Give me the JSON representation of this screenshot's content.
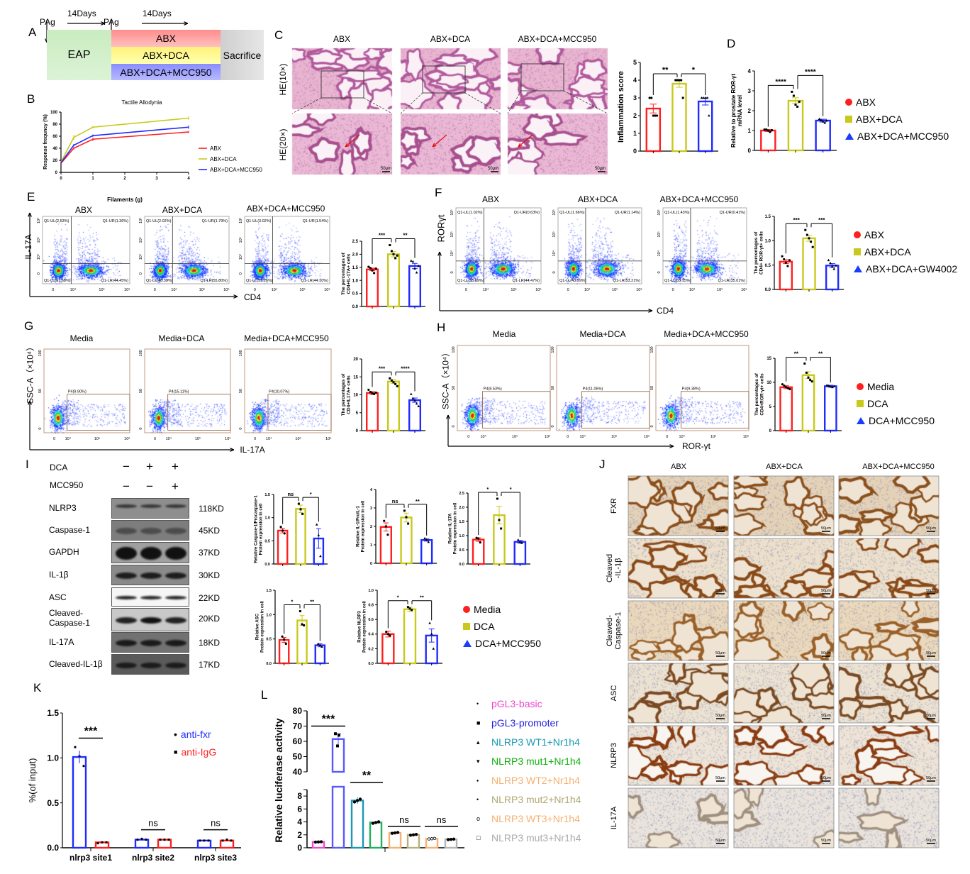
{
  "panel_letters": {
    "a": "A",
    "b": "B",
    "c": "C",
    "d": "D",
    "e": "E",
    "f": "F",
    "g": "G",
    "h": "H",
    "i": "I",
    "j": "J",
    "k": "K",
    "l": "L"
  },
  "colors": {
    "red": "#ff1f1f",
    "yellow": "#c9c91c",
    "blue": "#1f2bff"
  },
  "panel_a": {
    "pag1": "PAg",
    "pag2": "PAg",
    "days1": "14Days",
    "days2": "14Days",
    "eap": "EAP",
    "groups": [
      "ABX",
      "ABX+DCA",
      "ABX+DCA+MCC950"
    ],
    "sacrifice": "Sacrifice"
  },
  "panel_c": {
    "columns": [
      "ABX",
      "ABX+DCA",
      "ABX+DCA+MCC950"
    ],
    "rows": [
      "HE(10×)",
      "HE(20×)"
    ],
    "scale": "50μm"
  },
  "legend_abx": [
    "ABX",
    "ABX+DCA",
    "ABX+DCA+MCC950"
  ],
  "legend_f": [
    "ABX",
    "ABX+DCA",
    "ABX+DCA+GW4002"
  ],
  "legend_media": [
    "Media",
    "DCA",
    "DCA+MCC950"
  ],
  "panel_e": {
    "titles": [
      "ABX",
      "ABX+DCA",
      "ABX+DCA+MCC950"
    ],
    "ylabel": "IL-17A",
    "xlabel": "CD4",
    "xticks": [
      "0",
      "10⁴",
      "10⁵",
      "10⁶"
    ],
    "yticks": [
      "0",
      "10⁴",
      "10⁵",
      "10⁶"
    ],
    "quadrants": [
      [
        "Q1-UL(2.53%)",
        "Q1-UR(1.36%)",
        "Q1-LL(51.68%)",
        "Q1-LR(44.45%)"
      ],
      [
        "Q1-UL(2.02%)",
        "Q1-UR(1.79%)",
        "Q1-LL(40.39%)",
        "Q1-LR(55.80%)"
      ],
      [
        "Q1-UL(3.02%)",
        "Q1-UR(1.54%)",
        "Q1-LL(51.26%)",
        "Q1-LR(44.10%)"
      ]
    ]
  },
  "panel_f": {
    "titles": [
      "ABX",
      "ABX+DCA",
      "ABX+DCA+MCC950"
    ],
    "ylabel": "RORγt",
    "xlabel": "CD4",
    "xticks": [
      "0",
      "10⁴",
      "10⁵",
      "10⁶"
    ],
    "yticks": [
      "0",
      "10⁴",
      "10⁵",
      "10⁶"
    ],
    "quadrants": [
      [
        "Q1-UL(1.02%)",
        "Q1-UR(0.63%)",
        "Q1-LL(53.89%)",
        "Q1-LR(44.47%)"
      ],
      [
        "Q1-UL(1.66%)",
        "Q1-UR(1.14%)",
        "Q1-LL(43.99%)",
        "Q1-LR(53.21%)"
      ],
      [
        "Q1-UL(1.43%)",
        "Q1-UR(0.41%)",
        "Q1-LL(63.15%)",
        "Q1-LR(35.01%)"
      ]
    ]
  },
  "panel_g": {
    "titles": [
      "Media",
      "Media+DCA",
      "Media+DCA+MCC950"
    ],
    "ylabel": "SSC-A（×10⁴）",
    "xlabel": "IL-17A",
    "xticks": [
      "0",
      "10⁴",
      "10⁵",
      "10⁶"
    ],
    "yticks": [
      "0",
      "50",
      "100"
    ],
    "gates": [
      "P4(9.90%)",
      "P4(15.11%)",
      "P4(10.07%)"
    ]
  },
  "panel_h": {
    "titles": [
      "Media",
      "Media+DCA",
      "Media+DCA+MCC950"
    ],
    "ylabel": "SSC-A（×10⁴）",
    "xlabel": "ROR-γt",
    "xticks": [
      "0",
      "10⁴",
      "10⁵",
      "10⁶"
    ],
    "yticks": [
      "0",
      "50",
      "100"
    ],
    "gates": [
      "P4(8.53%)",
      "P4(11.06%)",
      "P4(9.38%)"
    ]
  },
  "panel_i": {
    "treatments": [
      {
        "label": "DCA",
        "signs": [
          "−",
          "+",
          "+"
        ]
      },
      {
        "label": "MCC950",
        "signs": [
          "−",
          "−",
          "+"
        ]
      }
    ],
    "blots": [
      {
        "protein": "NLRP3",
        "kd": "118KD"
      },
      {
        "protein": "Caspase-1",
        "kd": "45KD"
      },
      {
        "protein": "GAPDH",
        "kd": "37KD"
      },
      {
        "protein": "IL-1β",
        "kd": "30KD"
      },
      {
        "protein": "ASC",
        "kd": "22KD"
      },
      {
        "protein": "Cleaved-\nCaspase-1",
        "kd": "20KD"
      },
      {
        "protein": "IL-17A",
        "kd": "18KD"
      },
      {
        "protein": "Cleaved-IL-1β",
        "kd": "17KD"
      }
    ]
  },
  "panel_j": {
    "columns": [
      "ABX",
      "ABX+DCA",
      "ABX+DCA+MCC950"
    ],
    "rows": [
      "FXR",
      "Cleaved\n-IL-1β",
      "Cleaved-\nCaspase-1",
      "ASC",
      "NLRP3",
      "IL-17A"
    ],
    "scale": "50μm"
  },
  "chart_data": [
    {
      "id": "b_allodynia",
      "type": "line",
      "title": "Tactile Allodynia",
      "xlabel": "Filaments (g)",
      "ylabel": "Response frequncy (%)",
      "xlim": [
        0,
        4
      ],
      "ylim": [
        0,
        100
      ],
      "xticks": [
        "0",
        "1",
        "2",
        "3",
        "4"
      ],
      "yticks": [
        "0",
        "20",
        "40",
        "60",
        "80",
        "100"
      ],
      "x": [
        0,
        0.4,
        1,
        4
      ],
      "series": [
        {
          "name": "ABX",
          "color": "#ff1f1f",
          "values": [
            15,
            40,
            55,
            67
          ],
          "err": [
            1,
            2,
            3,
            2
          ]
        },
        {
          "name": "ABX+DCA",
          "color": "#c9c91c",
          "values": [
            17,
            58,
            75,
            90
          ],
          "err": [
            1,
            4,
            2,
            3
          ]
        },
        {
          "name": "ABX+DCA+MCC950",
          "color": "#1f2bff",
          "values": [
            16,
            45,
            61,
            75
          ],
          "err": [
            1,
            2,
            2,
            3
          ]
        }
      ],
      "legend": "right"
    },
    {
      "id": "c_score",
      "type": "bar",
      "ylabel": [
        "Inflammation score"
      ],
      "ylim": [
        0,
        5
      ],
      "yticks": [
        "0",
        "1",
        "2",
        "3",
        "4",
        "5"
      ],
      "categories": [
        "ABX",
        "ABX+DCA",
        "ABX+DCA+MCC950"
      ],
      "values": [
        2.4,
        3.8,
        2.8
      ],
      "err": [
        0.25,
        0.2,
        0.2
      ],
      "points": [
        [
          3,
          3,
          2,
          2,
          2
        ],
        [
          4,
          4,
          4,
          4,
          3
        ],
        [
          3,
          3,
          3,
          3,
          2
        ]
      ],
      "sig": [
        {
          "label": "**",
          "from": 0,
          "to": 1,
          "level": 0
        },
        {
          "label": "*",
          "from": 1,
          "to": 2,
          "level": 0
        }
      ]
    },
    {
      "id": "d_mrna",
      "type": "bar",
      "ylabel": [
        "Relative to prostate ROR-γt",
        "mRNA level"
      ],
      "ylim": [
        0,
        4
      ],
      "yticks": [
        "0",
        "1",
        "2",
        "3",
        "4"
      ],
      "categories": [
        "ABX",
        "ABX+DCA",
        "ABX+DCA+MCC950"
      ],
      "values": [
        1.0,
        2.5,
        1.5
      ],
      "err": [
        0.05,
        0.15,
        0.07
      ],
      "points": [
        [
          1.05,
          1.05,
          1.0,
          0.93,
          1.02
        ],
        [
          2.95,
          2.75,
          2.3,
          2.2,
          2.45
        ],
        [
          1.58,
          1.52,
          1.45,
          1.38,
          1.5
        ]
      ],
      "sig": [
        {
          "label": "****",
          "from": 0,
          "to": 1,
          "level": 0
        },
        {
          "label": "****",
          "from": 1,
          "to": 2,
          "level": 1
        }
      ]
    },
    {
      "id": "e_pct",
      "type": "bar",
      "ylabel": [
        "The percentages of",
        "CD4+IL-17A+ cells"
      ],
      "ylim": [
        0,
        2.5
      ],
      "yticks": [
        "0.0",
        "0.5",
        "1.0",
        "1.5",
        "2.0",
        "2.5"
      ],
      "categories": [
        "ABX",
        "ABX+DCA",
        "ABX+DCA+MCC950"
      ],
      "values": [
        1.42,
        2.0,
        1.55
      ],
      "err": [
        0.05,
        0.1,
        0.1
      ],
      "points": [
        [
          1.52,
          1.47,
          1.38,
          1.28,
          1.45
        ],
        [
          2.35,
          2.12,
          2.0,
          1.85,
          1.95
        ],
        [
          1.75,
          1.72,
          1.45,
          1.3,
          1.55
        ]
      ],
      "sig": [
        {
          "label": "***",
          "from": 0,
          "to": 1,
          "level": 0
        },
        {
          "label": "**",
          "from": 1,
          "to": 2,
          "level": 0
        }
      ]
    },
    {
      "id": "f_pct",
      "type": "bar",
      "ylabel": [
        "The percentages of",
        "CD4+ ROR-γt+ cells"
      ],
      "ylim": [
        0,
        1.5
      ],
      "yticks": [
        "0.0",
        "0.5",
        "1.0",
        "1.5"
      ],
      "categories": [
        "ABX",
        "ABX+DCA",
        "ABX+DCA+GW4002"
      ],
      "values": [
        0.57,
        1.05,
        0.49
      ],
      "err": [
        0.04,
        0.06,
        0.04
      ],
      "points": [
        [
          0.68,
          0.62,
          0.55,
          0.48,
          0.6
        ],
        [
          1.22,
          1.12,
          1.05,
          0.98,
          0.87
        ],
        [
          0.6,
          0.54,
          0.47,
          0.42,
          0.49
        ]
      ],
      "sig": [
        {
          "label": "***",
          "from": 0,
          "to": 1,
          "level": 0
        },
        {
          "label": "***",
          "from": 1,
          "to": 2,
          "level": 0
        }
      ]
    },
    {
      "id": "g_pct",
      "type": "bar",
      "ylabel": [
        "The percentages of",
        "CD4+IL17A+ cells"
      ],
      "ylim": [
        0,
        20
      ],
      "yticks": [
        "0",
        "5",
        "10",
        "15",
        "20"
      ],
      "categories": [
        "Media",
        "Media+DCA",
        "Media+DCA+MCC950"
      ],
      "values": [
        10.5,
        13.7,
        8.5
      ],
      "err": [
        0.4,
        0.5,
        0.6
      ],
      "points": [
        [
          11.4,
          10.8,
          10.4,
          10.2,
          10.6
        ],
        [
          14.6,
          14.0,
          13.5,
          13.0,
          12.4
        ],
        [
          10.2,
          9.0,
          8.4,
          7.5,
          6.8
        ]
      ],
      "sig": [
        {
          "label": "***",
          "from": 0,
          "to": 1,
          "level": 0
        },
        {
          "label": "****",
          "from": 1,
          "to": 2,
          "level": 0
        }
      ]
    },
    {
      "id": "h_pct",
      "type": "bar",
      "ylabel": [
        "The percentages of",
        "CD4+ROR-γt+ cells"
      ],
      "ylim": [
        0,
        15
      ],
      "yticks": [
        "0",
        "5",
        "10",
        "15"
      ],
      "categories": [
        "Media",
        "Media+DCA",
        "Media+DCA+MCC950"
      ],
      "values": [
        9.0,
        11.5,
        9.2
      ],
      "err": [
        0.3,
        0.7,
        0.2
      ],
      "points": [
        [
          9.6,
          9.3,
          9.0,
          8.8,
          8.6
        ],
        [
          13.9,
          12.0,
          11.0,
          10.5,
          10.2
        ],
        [
          9.4,
          9.3,
          9.1,
          9.0,
          9.2
        ]
      ],
      "sig": [
        {
          "label": "**",
          "from": 0,
          "to": 1,
          "level": 0
        },
        {
          "label": "**",
          "from": 1,
          "to": 2,
          "level": 0
        }
      ]
    },
    {
      "id": "i_casp",
      "type": "bar",
      "ylabel": [
        "Relative Caspase-1/Procaspase-1",
        "Protein expression in cell"
      ],
      "ylim": [
        0,
        1.5
      ],
      "yticks": [
        "0.0",
        "0.5",
        "1.0",
        "1.5"
      ],
      "categories": [
        "Media",
        "DCA",
        "DCA+MCC950"
      ],
      "values": [
        0.72,
        1.19,
        0.55
      ],
      "err": [
        0.05,
        0.08,
        0.21
      ],
      "points": [
        [
          0.8,
          0.72,
          0.66
        ],
        [
          1.3,
          1.18,
          1.08
        ],
        [
          0.85,
          0.62,
          0.17
        ]
      ],
      "sig": [
        {
          "label": "ns",
          "from": 0,
          "to": 1,
          "level": 0
        },
        {
          "label": "*",
          "from": 1,
          "to": 2,
          "level": 0
        }
      ]
    },
    {
      "id": "i_il1",
      "type": "bar",
      "ylabel": [
        "Relative IL-1/ProIL-1",
        "Protein expression in cell"
      ],
      "ylim": [
        0,
        4
      ],
      "yticks": [
        "0",
        "1",
        "2",
        "3",
        "4"
      ],
      "categories": [
        "Media",
        "DCA",
        "DCA+MCC950"
      ],
      "values": [
        1.97,
        2.48,
        1.26
      ],
      "err": [
        0.22,
        0.24,
        0.06
      ],
      "points": [
        [
          2.3,
          2.0,
          1.55
        ],
        [
          2.85,
          2.5,
          2.15
        ],
        [
          1.35,
          1.28,
          1.15
        ]
      ],
      "sig": [
        {
          "label": "ns",
          "from": 0,
          "to": 1,
          "level": 0
        },
        {
          "label": "**",
          "from": 1,
          "to": 2,
          "level": 0
        }
      ]
    },
    {
      "id": "i_il17",
      "type": "bar",
      "ylabel": [
        "Relative IL-17A",
        "Protein expression in cell"
      ],
      "ylim": [
        0,
        2.5
      ],
      "yticks": [
        "0.0",
        "0.5",
        "1.0",
        "1.5",
        "2.0",
        "2.5"
      ],
      "categories": [
        "Media",
        "DCA",
        "DCA+MCC950"
      ],
      "values": [
        0.86,
        1.72,
        0.78
      ],
      "err": [
        0.06,
        0.31,
        0.05
      ],
      "points": [
        [
          0.92,
          0.9,
          0.76
        ],
        [
          2.3,
          1.55,
          1.25
        ],
        [
          0.85,
          0.78,
          0.74
        ]
      ],
      "sig": [
        {
          "label": "*",
          "from": 0,
          "to": 1,
          "level": 0
        },
        {
          "label": "*",
          "from": 1,
          "to": 2,
          "level": 0
        }
      ]
    },
    {
      "id": "i_asc",
      "type": "bar",
      "ylabel": [
        "Relative ASC",
        "Protein expression in cell"
      ],
      "ylim": [
        0,
        1.5
      ],
      "yticks": [
        "0.0",
        "0.5",
        "1.0",
        "1.5"
      ],
      "categories": [
        "Media",
        "DCA",
        "DCA+MCC950"
      ],
      "values": [
        0.48,
        0.88,
        0.37
      ],
      "err": [
        0.05,
        0.1,
        0.03
      ],
      "points": [
        [
          0.55,
          0.49,
          0.4
        ],
        [
          1.07,
          0.8,
          0.78
        ],
        [
          0.4,
          0.37,
          0.34
        ]
      ],
      "sig": [
        {
          "label": "*",
          "from": 0,
          "to": 1,
          "level": 0
        },
        {
          "label": "**",
          "from": 1,
          "to": 2,
          "level": 0
        }
      ]
    },
    {
      "id": "i_nlrp3",
      "type": "bar",
      "ylabel": [
        "Relative NLRP3",
        "Protein expression in cell"
      ],
      "ylim": [
        0,
        1.0
      ],
      "yticks": [
        "0.0",
        "0.2",
        "0.4",
        "0.6",
        "0.8",
        "1.0"
      ],
      "categories": [
        "Media",
        "DCA",
        "DCA+MCC950"
      ],
      "values": [
        0.4,
        0.74,
        0.38
      ],
      "err": [
        0.04,
        0.03,
        0.09
      ],
      "points": [
        [
          0.43,
          0.4,
          0.38
        ],
        [
          0.77,
          0.75,
          0.73
        ],
        [
          0.55,
          0.4,
          0.2
        ]
      ],
      "sig": [
        {
          "label": "*",
          "from": 0,
          "to": 1,
          "level": 0
        },
        {
          "label": "**",
          "from": 1,
          "to": 2,
          "level": 0
        }
      ]
    },
    {
      "id": "k_chip",
      "type": "bar",
      "ylabel": [
        "%(of input)"
      ],
      "ylim": [
        0,
        1.5
      ],
      "yticks": [
        "0.0",
        "0.5",
        "1.0",
        "1.5"
      ],
      "categories": [
        "nlrp3 site1",
        "nlrp3 site2",
        "nlrp3 site3"
      ],
      "series": [
        {
          "name": "anti-fxr",
          "color": "#1f2bff",
          "values": [
            1.01,
            0.09,
            0.08
          ],
          "points": [
            [
              1.12,
              1.02,
              0.91
            ],
            [
              0.09,
              0.1,
              0.09
            ],
            [
              0.08,
              0.08,
              0.08
            ]
          ]
        },
        {
          "name": "anti-IgG",
          "color": "#ff1f1f",
          "values": [
            0.06,
            0.09,
            0.08
          ],
          "points": [
            [
              0.05,
              0.06,
              0.06
            ],
            [
              0.09,
              0.09,
              0.09
            ],
            [
              0.08,
              0.09,
              0.08
            ]
          ]
        }
      ],
      "sig": [
        "***",
        "ns",
        "ns"
      ],
      "legend": "top-right"
    },
    {
      "id": "l_luciferase",
      "type": "bar",
      "ylabel": [
        "Relative luciferase activity"
      ],
      "ylim_lower": [
        0,
        9
      ],
      "ylim_upper": [
        40,
        80
      ],
      "yticks_lower": [
        "0",
        "2",
        "4",
        "6",
        "8"
      ],
      "yticks_upper": [
        "40",
        "50",
        "60",
        "70",
        "80"
      ],
      "categories": [
        "pGL3-basic",
        "pGL3-promoter",
        "NLRP3 WT1+Nr1h4",
        "NLRP3 mut1+Nr1h4",
        "NLRP3 WT2+Nr1h4",
        "NLRP3 mut2+Nr1h4",
        "NLRP3 WT3+Nr1h4",
        "NLRP3 mut3+Nr1h4"
      ],
      "marker_glyphs": [
        "•",
        "■",
        "▴",
        "▾",
        "⬩",
        "•",
        "o",
        "□"
      ],
      "values": [
        0.9,
        61.5,
        7.3,
        3.9,
        2.3,
        2.0,
        1.4,
        1.3
      ],
      "err": [
        0.1,
        3.5,
        0.5,
        0.2,
        0.1,
        0.2,
        0.1,
        0.1
      ],
      "colors": [
        "#f04ad0",
        "#5858ff",
        "#1a98b4",
        "#1fb060",
        "#f6b070",
        "#b8b07c",
        "#f6b070",
        "#b4b4b4"
      ],
      "sig": [
        {
          "label": "***",
          "from": 0,
          "to": 1
        },
        {
          "label": "**",
          "from": 2,
          "to": 3
        },
        {
          "label": "ns",
          "from": 4,
          "to": 5
        },
        {
          "label": "ns",
          "from": 6,
          "to": 7
        }
      ],
      "legend": "right"
    }
  ]
}
